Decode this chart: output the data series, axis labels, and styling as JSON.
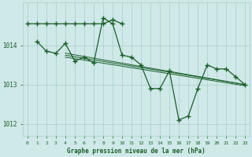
{
  "background_color": "#cfe8e8",
  "grid_color": "#a8cfc8",
  "line_color": "#1a5e2a",
  "marker_color": "#1a5e2a",
  "xlabel": "Graphe pression niveau de la mer (hPa)",
  "xlabel_color": "#1a5e2a",
  "tick_color": "#1a5e2a",
  "xlim": [
    -0.5,
    23.5
  ],
  "ylim": [
    1011.7,
    1015.1
  ],
  "yticks": [
    1012,
    1013,
    1014
  ],
  "xticks": [
    0,
    1,
    2,
    3,
    4,
    5,
    6,
    7,
    8,
    9,
    10,
    11,
    12,
    13,
    14,
    15,
    16,
    17,
    18,
    19,
    20,
    21,
    22,
    23
  ],
  "series_flat": {
    "x": [
      0,
      1,
      2,
      3,
      4,
      5,
      6,
      7,
      8,
      9,
      10
    ],
    "y": [
      1014.55,
      1014.55,
      1014.55,
      1014.55,
      1014.55,
      1014.55,
      1014.55,
      1014.55,
      1014.55,
      1014.65,
      1014.55
    ]
  },
  "series_main": {
    "x": [
      1,
      2,
      3,
      4,
      5,
      6,
      7,
      8,
      9,
      10,
      11,
      12,
      13,
      14,
      15,
      16,
      17,
      18,
      19,
      20,
      21,
      22,
      23
    ],
    "y": [
      1014.1,
      1013.85,
      1013.8,
      1014.05,
      1013.6,
      1013.7,
      1013.55,
      1014.7,
      1014.55,
      1013.75,
      1013.7,
      1013.5,
      1012.9,
      1012.9,
      1013.35,
      1012.1,
      1012.2,
      1012.9,
      1013.5,
      1013.4,
      1013.4,
      1013.2,
      1013.0
    ]
  },
  "trend_lines": [
    {
      "x": [
        4,
        23
      ],
      "y": [
        1013.8,
        1013.0
      ]
    },
    {
      "x": [
        4,
        23
      ],
      "y": [
        1013.75,
        1013.0
      ]
    },
    {
      "x": [
        4,
        23
      ],
      "y": [
        1013.7,
        1012.97
      ]
    }
  ]
}
